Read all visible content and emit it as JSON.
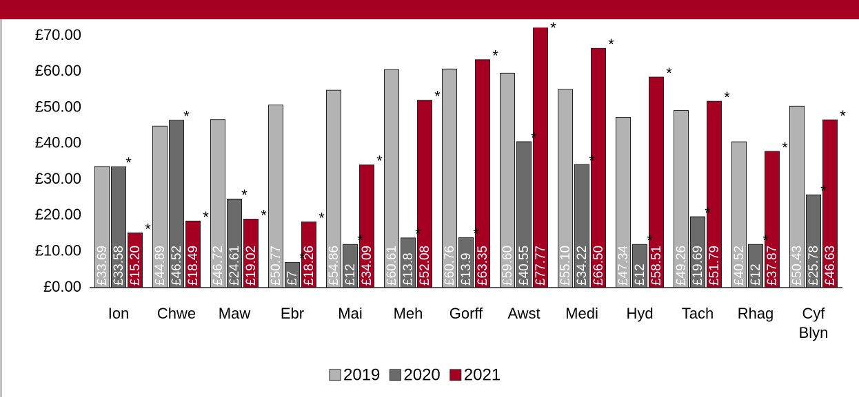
{
  "chart_data": {
    "type": "bar",
    "categories": [
      "Ion",
      "Chwe",
      "Maw",
      "Ebr",
      "Mai",
      "Meh",
      "Gorff",
      "Awst",
      "Medi",
      "Hyd",
      "Tach",
      "Rhag",
      "Cyf Blyn"
    ],
    "series": [
      {
        "name": "2019",
        "color": "#b3b3b3",
        "values": [
          33.69,
          44.89,
          46.72,
          50.77,
          54.86,
          60.61,
          60.76,
          59.6,
          55.1,
          47.34,
          49.26,
          40.52,
          50.43
        ],
        "value_labels": [
          "£33.69",
          "£44.89",
          "£46.72",
          "£50.77",
          "£54.86",
          "£60.61",
          "£60.76",
          "£59.60",
          "£55.10",
          "£47.34",
          "£49.26",
          "£40.52",
          "£50.43"
        ]
      },
      {
        "name": "2020",
        "color": "#6b6b6b",
        "values": [
          33.58,
          46.52,
          24.61,
          7,
          12,
          13.8,
          13.9,
          40.55,
          34.22,
          12,
          19.69,
          12,
          25.78
        ],
        "value_labels": [
          "£33.58",
          "£46.52",
          "£24.61",
          "£7",
          "£12",
          "£13.8",
          "£13.9",
          "£40.55",
          "£34.22",
          "£12",
          "£19.69",
          "£12",
          "£25.78"
        ]
      },
      {
        "name": "2021",
        "color": "#a50021",
        "values": [
          15.2,
          18.49,
          19.02,
          18.26,
          34.09,
          52.08,
          63.35,
          77.77,
          66.5,
          58.51,
          51.79,
          37.87,
          46.63
        ],
        "value_labels": [
          "£15.20",
          "£18.49",
          "£19.02",
          "£18.26",
          "£34.09",
          "£52.08",
          "£63.35",
          "£77.77",
          "£66.50",
          "£58.51",
          "£51.79",
          "£37.87",
          "£46.63"
        ]
      }
    ],
    "marker": "*",
    "ylim": [
      0,
      70
    ],
    "yticks": [
      {
        "value": 0,
        "label": "£0.00"
      },
      {
        "value": 10,
        "label": "£10.00"
      },
      {
        "value": 20,
        "label": "£20.00"
      },
      {
        "value": 30,
        "label": "£30.00"
      },
      {
        "value": 40,
        "label": "£40.00"
      },
      {
        "value": 50,
        "label": "£50.00"
      },
      {
        "value": 60,
        "label": "£60.00"
      },
      {
        "value": 70,
        "label": "£70.00"
      }
    ],
    "grid": false,
    "legend": "bottom"
  }
}
